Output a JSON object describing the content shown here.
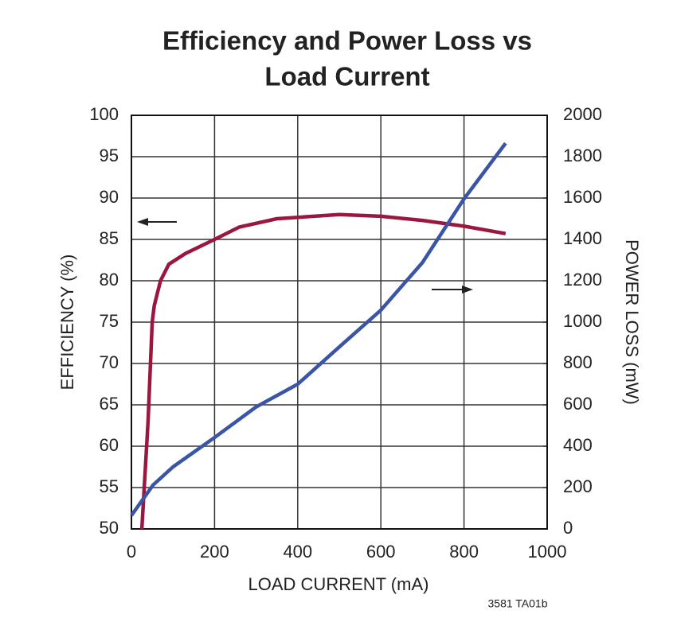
{
  "chart_data": {
    "type": "line",
    "title": [
      "Efficiency and Power Loss vs",
      "Load Current"
    ],
    "xlabel": "LOAD CURRENT (mA)",
    "ylabel": "EFFICIENCY (%)",
    "y2label": "POWER LOSS (mW)",
    "annotation": "3581 TA01b",
    "xlim": [
      0,
      1000
    ],
    "xticks": [
      0,
      200,
      400,
      600,
      800,
      1000
    ],
    "ylim": [
      50,
      100
    ],
    "yticks": [
      50,
      55,
      60,
      65,
      70,
      75,
      80,
      85,
      90,
      95,
      100
    ],
    "y2lim": [
      0,
      2000
    ],
    "y2ticks": [
      0,
      200,
      400,
      600,
      800,
      1000,
      1200,
      1400,
      1600,
      1800,
      2000
    ],
    "grid": true,
    "series": [
      {
        "name": "Efficiency",
        "color": "#9a1840",
        "axis": "y",
        "x": [
          25,
          40,
          50,
          55,
          70,
          90,
          130,
          200,
          260,
          350,
          500,
          600,
          700,
          800,
          900
        ],
        "values": [
          50,
          63,
          75,
          77,
          80,
          82,
          83.3,
          85,
          86.5,
          87.5,
          88,
          87.8,
          87.3,
          86.6,
          85.7
        ]
      },
      {
        "name": "Power Loss",
        "color": "#3a55a5",
        "axis": "y2",
        "x": [
          0,
          52,
          100,
          200,
          300,
          400,
          500,
          600,
          700,
          800,
          900
        ],
        "values": [
          65,
          212,
          300,
          442,
          590,
          700,
          880,
          1058,
          1288,
          1596,
          1865
        ]
      }
    ]
  }
}
